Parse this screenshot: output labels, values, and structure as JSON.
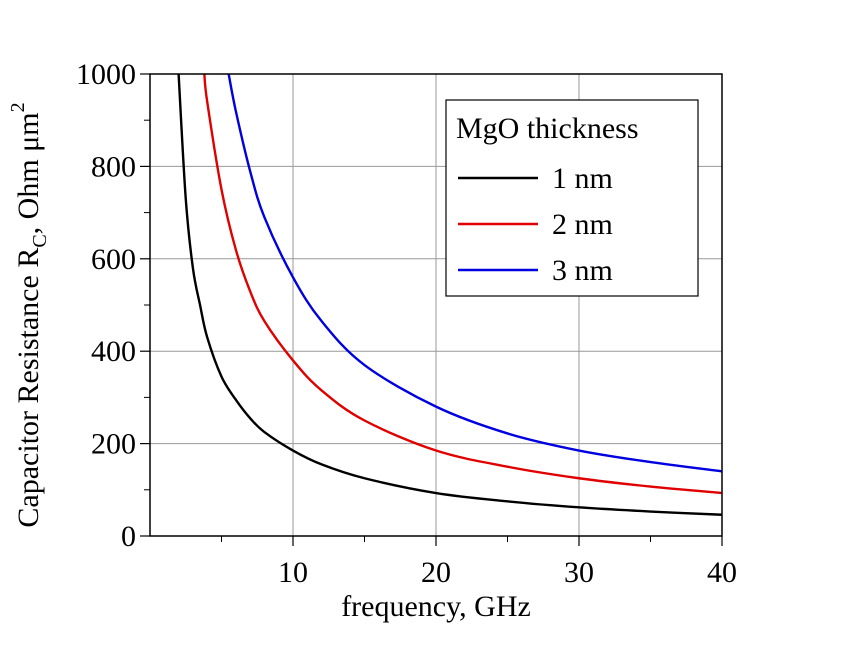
{
  "chart_data": {
    "type": "line",
    "xlabel": "frequency, GHz",
    "ylabel": {
      "main": "Capacitor Resistance R",
      "subscript": "C",
      "unit": ", Ohm μm",
      "superscript": "2"
    },
    "xlim": [
      0,
      40
    ],
    "ylim": [
      0,
      1000
    ],
    "xticks": [
      10,
      20,
      30,
      40
    ],
    "yticks": [
      0,
      200,
      400,
      600,
      800,
      1000
    ],
    "grid": true,
    "legend": {
      "title": "MgO thickness",
      "placement": "top-right"
    },
    "series": [
      {
        "name": "1 nm",
        "color": "#000000",
        "x": [
          2,
          2.5,
          3,
          3.5,
          4,
          5,
          6,
          7,
          8,
          10,
          12,
          15,
          20,
          25,
          30,
          35,
          40
        ],
        "y": [
          1000,
          730,
          580,
          500,
          430,
          345,
          295,
          255,
          225,
          185,
          155,
          125,
          93,
          75,
          62,
          53,
          46
        ]
      },
      {
        "name": "2 nm",
        "color": "#e00000",
        "x": [
          3.8,
          4,
          5,
          6,
          7,
          8,
          10,
          12,
          15,
          20,
          25,
          30,
          35,
          40
        ],
        "y": [
          1000,
          940,
          750,
          620,
          530,
          465,
          380,
          315,
          250,
          185,
          150,
          125,
          107,
          93
        ]
      },
      {
        "name": "3 nm",
        "color": "#0000e0",
        "x": [
          5.5,
          6,
          7,
          8,
          10,
          12,
          15,
          20,
          25,
          30,
          35,
          40
        ],
        "y": [
          1000,
          920,
          790,
          690,
          560,
          465,
          370,
          280,
          222,
          185,
          160,
          140
        ]
      }
    ]
  }
}
